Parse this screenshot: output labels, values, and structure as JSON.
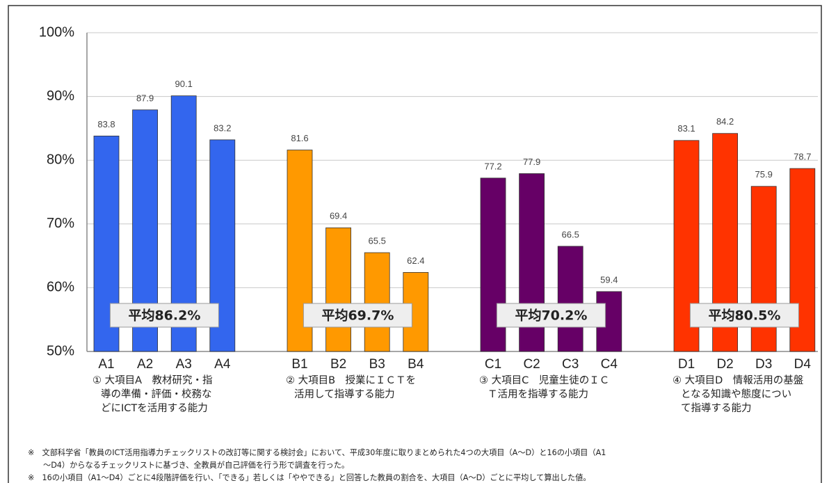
{
  "chart_data": {
    "type": "bar",
    "ylim": [
      50,
      100
    ],
    "yticks": [
      {
        "value": 50,
        "label": "50%"
      },
      {
        "value": 60,
        "label": "60%"
      },
      {
        "value": 70,
        "label": "70%"
      },
      {
        "value": 80,
        "label": "80%"
      },
      {
        "value": 90,
        "label": "90%"
      },
      {
        "value": 100,
        "label": "100%"
      }
    ],
    "grid": true,
    "groups": [
      {
        "color": "#3366ee",
        "categories": [
          "A1",
          "A2",
          "A3",
          "A4"
        ],
        "values": [
          83.8,
          87.9,
          90.1,
          83.2
        ],
        "average": "平均86.2%",
        "label_lines": [
          "① 大項目A　教材研究・指",
          "導の準備・評価・校務な",
          "どにICTを活用する能力"
        ]
      },
      {
        "color": "#ff9900",
        "categories": [
          "B1",
          "B2",
          "B3",
          "B4"
        ],
        "values": [
          81.6,
          69.4,
          65.5,
          62.4
        ],
        "average": "平均69.7%",
        "label_lines": [
          "② 大項目B　授業にＩＣＴを",
          "活用して指導する能力"
        ]
      },
      {
        "color": "#660066",
        "categories": [
          "C1",
          "C2",
          "C3",
          "C4"
        ],
        "values": [
          77.2,
          77.9,
          66.5,
          59.4
        ],
        "average": "平均70.2%",
        "label_lines": [
          "③ 大項目C　児童生徒のＩＣ",
          "Ｔ活用を指導する能力"
        ]
      },
      {
        "color": "#ff3300",
        "categories": [
          "D1",
          "D2",
          "D3",
          "D4"
        ],
        "values": [
          83.1,
          84.2,
          75.9,
          78.7
        ],
        "average": "平均80.5%",
        "label_lines": [
          "④ 大項目D　情報活用の基盤",
          "となる知識や態度につい",
          "て指導する能力"
        ]
      }
    ],
    "notes": [
      "※　文部科学省「教員のICT活用指導力チェックリストの改訂等に関する検討会」において、平成30年度に取りまとめられた4つの大項目（A～D）と16の小項目（A1",
      "～D4）からなるチェックリストに基づき、全教員が自己評価を行う形で調査を行った。",
      "※　16の小項目（A1～D4）ごとに4段階評価を行い、「できる」若しくは「ややできる」と回答した教員の割合を、大項目（A～D）ごとに平均して算出した値。"
    ]
  }
}
